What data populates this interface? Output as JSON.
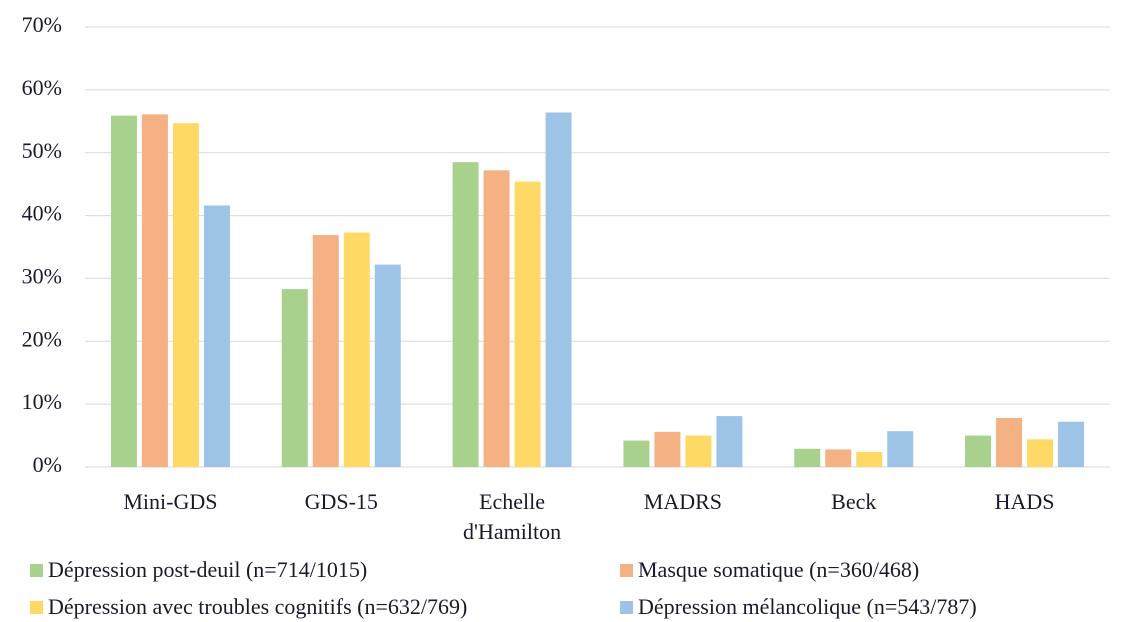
{
  "chart_data": {
    "type": "bar",
    "categories": [
      "Mini-GDS",
      "GDS-15",
      "Echelle d'Hamilton",
      "MADRS",
      "Beck",
      "HADS"
    ],
    "series": [
      {
        "name": "Dépression post-deuil (n=714/1015)",
        "color": "#a9d18e",
        "values": [
          55.9,
          28.3,
          48.5,
          4.2,
          2.9,
          5.0
        ]
      },
      {
        "name": "Masque somatique (n=360/468)",
        "color": "#f4b183",
        "values": [
          56.1,
          36.9,
          47.2,
          5.6,
          2.8,
          7.8
        ]
      },
      {
        "name": "Dépression avec troubles cognitifs (n=632/769)",
        "color": "#ffd966",
        "values": [
          54.7,
          37.3,
          45.4,
          5.0,
          2.4,
          4.4
        ]
      },
      {
        "name": "Dépression mélancolique (n=543/787)",
        "color": "#9dc3e6",
        "values": [
          41.6,
          32.2,
          56.4,
          8.1,
          5.7,
          7.2
        ]
      }
    ],
    "ylim": [
      0,
      70
    ],
    "yticks": [
      {
        "value": 0,
        "label": "0%"
      },
      {
        "value": 10,
        "label": "10%"
      },
      {
        "value": 20,
        "label": "20%"
      },
      {
        "value": 30,
        "label": "30%"
      },
      {
        "value": 40,
        "label": "40%"
      },
      {
        "value": 50,
        "label": "50%"
      },
      {
        "value": 60,
        "label": "60%"
      },
      {
        "value": 70,
        "label": "70%"
      }
    ],
    "grid": true,
    "legend": "bottom"
  }
}
